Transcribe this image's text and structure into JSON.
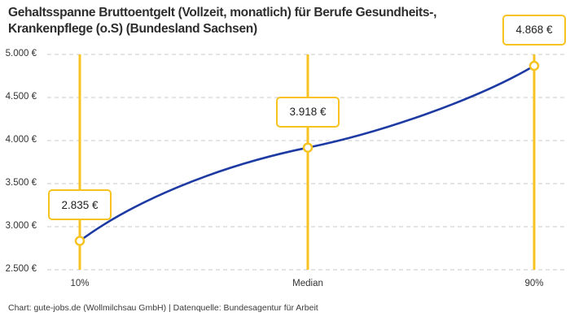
{
  "title_lines": [
    "Gehaltsspanne Bruttoentgelt (Vollzeit, monatlich) für Berufe Gesundheits-,",
    "Krankenpflege (o.S) (Bundesland Sachsen)"
  ],
  "footer": {
    "text": "Chart: gute-jobs.de (Wollmilchsau GmbH) | Datenquelle: Bundesagentur für Arbeit"
  },
  "chart_data": {
    "type": "line",
    "title": "Gehaltsspanne Bruttoentgelt (Vollzeit, monatlich) für Berufe Gesundheits-, Krankenpflege (o.S) (Bundesland Sachsen)",
    "categories": [
      "10%",
      "Median",
      "90%"
    ],
    "values": [
      2835,
      3918,
      4868
    ],
    "point_labels": [
      "2.835 €",
      "3.918 €",
      "4.868 €"
    ],
    "xlabel": "",
    "ylabel": "",
    "ylim": [
      2500,
      5000
    ],
    "ytick_step": 500,
    "ytick_labels": [
      "2.500 €",
      "3.000 €",
      "3.500 €",
      "4.000 €",
      "4.500 €",
      "5.000 €"
    ],
    "grid": "horizontal-dashed",
    "legend": "none",
    "colors": {
      "line": "#1d3ba3",
      "vline": "#f7c320",
      "marker_stroke": "#f7c320",
      "marker_fill": "#ffffff",
      "label_border": "#f7c320",
      "grid": "#c9c9c9",
      "text": "#333333",
      "title": "#2d2d2d",
      "background": "#ffffff"
    }
  }
}
